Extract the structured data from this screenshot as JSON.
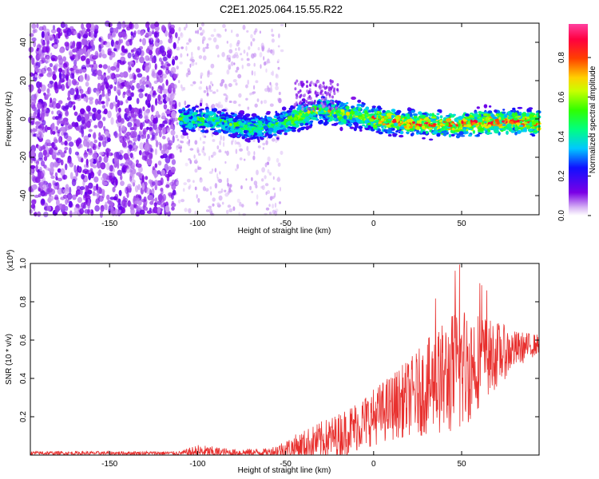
{
  "title": "C2E1.2025.064.15.55.R22",
  "chart_data": [
    {
      "type": "heatmap",
      "xlabel": "Height of straight line (km)",
      "ylabel": "Frequency (Hz)",
      "xlim": [
        -195,
        94
      ],
      "ylim": [
        -50,
        50
      ],
      "xticks": [
        -150,
        -100,
        -50,
        0,
        50
      ],
      "yticks": [
        -40,
        -20,
        0,
        20,
        40
      ],
      "colorbar": {
        "label": "Normalized spectral amplitude",
        "range": [
          0,
          0.97
        ],
        "ticks": [
          "0.0",
          "0.2",
          "0.4",
          "0.6",
          "0.8"
        ],
        "colormap": "rainbow (violet-blue-cyan-green-yellow-red-magenta)"
      },
      "ridge_center_hz": [
        {
          "x": -110,
          "y": 0
        },
        {
          "x": -90,
          "y": -1
        },
        {
          "x": -70,
          "y": -5
        },
        {
          "x": -55,
          "y": -3
        },
        {
          "x": -40,
          "y": 2
        },
        {
          "x": -30,
          "y": 5
        },
        {
          "x": -20,
          "y": 3
        },
        {
          "x": -10,
          "y": 2
        },
        {
          "x": 0,
          "y": 0
        },
        {
          "x": 20,
          "y": -2
        },
        {
          "x": 40,
          "y": -3
        },
        {
          "x": 60,
          "y": -2
        },
        {
          "x": 80,
          "y": -1
        },
        {
          "x": 94,
          "y": -2
        }
      ],
      "noise_region_x": [
        -195,
        -112
      ]
    },
    {
      "type": "line",
      "xlabel": "Height of straight line (km)",
      "ylabel": "SNR (10 * v/v)",
      "yscale_label": "(x10^4)",
      "xlim": [
        -195,
        94
      ],
      "ylim": [
        0,
        1.0
      ],
      "xticks": [
        -150,
        -100,
        -50,
        0,
        50
      ],
      "yticks": [
        "0.2",
        "0.4",
        "0.6",
        "0.8",
        "1.0"
      ],
      "color": "#e8302e",
      "envelope": [
        {
          "x": -195,
          "base": 0.01,
          "amp": 0.01
        },
        {
          "x": -110,
          "base": 0.01,
          "amp": 0.01
        },
        {
          "x": -100,
          "base": 0.015,
          "amp": 0.04
        },
        {
          "x": -80,
          "base": 0.012,
          "amp": 0.02
        },
        {
          "x": -60,
          "base": 0.015,
          "amp": 0.02
        },
        {
          "x": -50,
          "base": 0.03,
          "amp": 0.05
        },
        {
          "x": -40,
          "base": 0.05,
          "amp": 0.08
        },
        {
          "x": -20,
          "base": 0.1,
          "amp": 0.12
        },
        {
          "x": 0,
          "base": 0.2,
          "amp": 0.15
        },
        {
          "x": 20,
          "base": 0.3,
          "amp": 0.2
        },
        {
          "x": 40,
          "base": 0.4,
          "amp": 0.3
        },
        {
          "x": 50,
          "base": 0.45,
          "amp": 0.35
        },
        {
          "x": 60,
          "base": 0.5,
          "amp": 0.25
        },
        {
          "x": 80,
          "base": 0.55,
          "amp": 0.1
        },
        {
          "x": 94,
          "base": 0.58,
          "amp": 0.05
        }
      ]
    }
  ]
}
